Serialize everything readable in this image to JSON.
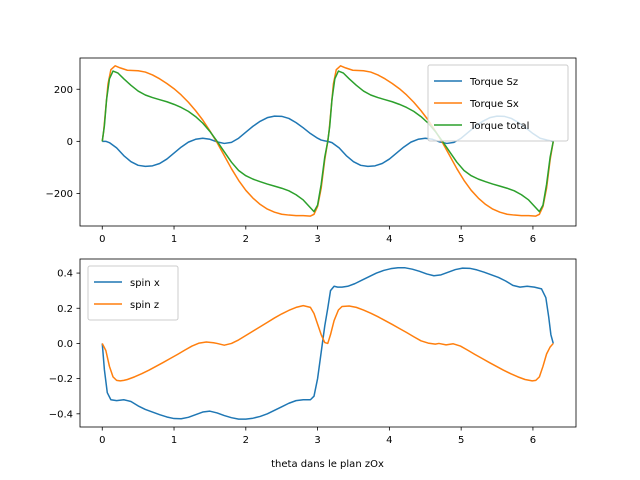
{
  "chart_data": [
    {
      "type": "line",
      "title": "",
      "xlabel": "",
      "ylabel": "",
      "xlim": [
        -0.31,
        6.6
      ],
      "ylim": [
        -325,
        320
      ],
      "xticks": [
        0,
        1,
        2,
        3,
        4,
        5,
        6
      ],
      "yticks": [
        -200,
        0,
        200
      ],
      "xtick_labels": [
        "0",
        "1",
        "2",
        "3",
        "4",
        "5",
        "6"
      ],
      "ytick_labels": [
        "−200",
        "0",
        "200"
      ],
      "legend": "upper right",
      "series": [
        {
          "name": "Torque Sz",
          "color": "#1f77b4",
          "x": [
            0,
            0.05,
            0.1,
            0.2,
            0.3,
            0.4,
            0.5,
            0.6,
            0.7,
            0.8,
            0.9,
            1.0,
            1.1,
            1.2,
            1.3,
            1.4,
            1.5,
            1.6,
            1.7,
            1.8,
            1.9,
            2.0,
            2.1,
            2.2,
            2.3,
            2.4,
            2.5,
            2.6,
            2.7,
            2.8,
            2.9,
            3.0,
            3.05,
            3.1,
            3.1416,
            3.2,
            3.3,
            3.4,
            3.5,
            3.6,
            3.7,
            3.8,
            3.9,
            4.0,
            4.1,
            4.2,
            4.3,
            4.4,
            4.5,
            4.6,
            4.7,
            4.8,
            4.9,
            5.0,
            5.1,
            5.2,
            5.3,
            5.4,
            5.5,
            5.6,
            5.7,
            5.8,
            5.9,
            6.0,
            6.1,
            6.2,
            6.2832
          ],
          "y": [
            0,
            0,
            -5,
            -25,
            -55,
            -78,
            -92,
            -96,
            -94,
            -85,
            -68,
            -45,
            -22,
            -3,
            8,
            12,
            8,
            -2,
            -8,
            -4,
            12,
            35,
            58,
            77,
            91,
            97,
            96,
            88,
            72,
            52,
            30,
            12,
            5,
            2,
            0,
            -5,
            -25,
            -55,
            -78,
            -92,
            -96,
            -94,
            -85,
            -68,
            -45,
            -22,
            -3,
            8,
            12,
            8,
            -2,
            -8,
            -4,
            12,
            35,
            58,
            77,
            91,
            97,
            96,
            88,
            72,
            52,
            30,
            12,
            5,
            0
          ]
        },
        {
          "name": "Torque Sx",
          "color": "#ff7f0e",
          "x": [
            0,
            0.02,
            0.05,
            0.08,
            0.12,
            0.18,
            0.25,
            0.35,
            0.5,
            0.6,
            0.7,
            0.8,
            0.9,
            1.0,
            1.1,
            1.2,
            1.3,
            1.4,
            1.5,
            1.6,
            1.7,
            1.8,
            1.9,
            2.0,
            2.1,
            2.2,
            2.3,
            2.4,
            2.5,
            2.6,
            2.7,
            2.8,
            2.9,
            2.95,
            3.0,
            3.05,
            3.1,
            3.1416,
            3.16,
            3.19,
            3.22,
            3.26,
            3.32,
            3.39,
            3.49,
            3.64,
            3.74,
            3.84,
            3.94,
            4.04,
            4.14,
            4.24,
            4.34,
            4.44,
            4.54,
            4.64,
            4.74,
            4.84,
            4.94,
            5.04,
            5.14,
            5.24,
            5.34,
            5.44,
            5.54,
            5.64,
            5.74,
            5.84,
            5.94,
            6.04,
            6.09,
            6.14,
            6.19,
            6.24,
            6.2832
          ],
          "y": [
            0,
            40,
            130,
            220,
            275,
            290,
            282,
            273,
            271,
            266,
            255,
            240,
            222,
            202,
            178,
            150,
            118,
            82,
            40,
            -5,
            -55,
            -105,
            -150,
            -188,
            -218,
            -242,
            -260,
            -272,
            -280,
            -283,
            -285,
            -285,
            -287,
            -280,
            -250,
            -180,
            -70,
            0,
            40,
            130,
            220,
            275,
            290,
            282,
            273,
            271,
            266,
            255,
            240,
            222,
            202,
            178,
            150,
            118,
            82,
            40,
            -5,
            -55,
            -105,
            -150,
            -188,
            -218,
            -242,
            -260,
            -272,
            -280,
            -283,
            -285,
            -285,
            -287,
            -280,
            -250,
            -180,
            -70,
            0
          ]
        },
        {
          "name": "Torque total",
          "color": "#2ca02c",
          "x": [
            0,
            0.03,
            0.06,
            0.1,
            0.15,
            0.22,
            0.3,
            0.4,
            0.5,
            0.6,
            0.7,
            0.8,
            0.9,
            1.0,
            1.1,
            1.2,
            1.3,
            1.4,
            1.5,
            1.6,
            1.7,
            1.8,
            1.9,
            2.0,
            2.1,
            2.2,
            2.3,
            2.4,
            2.5,
            2.6,
            2.7,
            2.8,
            2.9,
            2.95,
            3.0,
            3.05,
            3.1,
            3.1416,
            3.17,
            3.2,
            3.24,
            3.29,
            3.36,
            3.44,
            3.54,
            3.64,
            3.74,
            3.84,
            3.94,
            4.04,
            4.14,
            4.24,
            4.34,
            4.44,
            4.54,
            4.64,
            4.74,
            4.84,
            4.94,
            5.04,
            5.14,
            5.24,
            5.34,
            5.44,
            5.54,
            5.64,
            5.74,
            5.84,
            5.94,
            6.04,
            6.09,
            6.14,
            6.19,
            6.24,
            6.2832
          ],
          "y": [
            0,
            60,
            160,
            240,
            270,
            262,
            240,
            215,
            193,
            178,
            168,
            160,
            152,
            142,
            130,
            115,
            95,
            70,
            38,
            0,
            -40,
            -80,
            -112,
            -132,
            -145,
            -155,
            -164,
            -172,
            -180,
            -190,
            -205,
            -225,
            -255,
            -270,
            -245,
            -165,
            -60,
            0,
            60,
            160,
            240,
            270,
            262,
            240,
            215,
            193,
            178,
            168,
            160,
            152,
            142,
            130,
            115,
            95,
            70,
            38,
            0,
            -40,
            -80,
            -112,
            -132,
            -145,
            -155,
            -164,
            -172,
            -180,
            -190,
            -205,
            -225,
            -255,
            -270,
            -245,
            -165,
            -60,
            0
          ]
        }
      ]
    },
    {
      "type": "line",
      "title": "",
      "xlabel": "theta dans le plan zOx",
      "ylabel": "",
      "xlim": [
        -0.31,
        6.6
      ],
      "ylim": [
        -0.475,
        0.48
      ],
      "xticks": [
        0,
        1,
        2,
        3,
        4,
        5,
        6
      ],
      "yticks": [
        -0.4,
        -0.2,
        0.0,
        0.2,
        0.4
      ],
      "xtick_labels": [
        "0",
        "1",
        "2",
        "3",
        "4",
        "5",
        "6"
      ],
      "ytick_labels": [
        "−0.4",
        "−0.2",
        "0.0",
        "0.2",
        "0.4"
      ],
      "legend": "upper left",
      "series": [
        {
          "name": "spin x",
          "color": "#1f77b4",
          "x": [
            0,
            0.03,
            0.07,
            0.12,
            0.2,
            0.3,
            0.4,
            0.5,
            0.6,
            0.7,
            0.8,
            0.9,
            1.0,
            1.1,
            1.2,
            1.3,
            1.4,
            1.5,
            1.6,
            1.7,
            1.8,
            1.9,
            2.0,
            2.1,
            2.2,
            2.3,
            2.4,
            2.5,
            2.6,
            2.7,
            2.8,
            2.9,
            2.95,
            3.0,
            3.05,
            3.1,
            3.1416,
            3.18,
            3.23,
            3.28,
            3.34,
            3.42,
            3.52,
            3.62,
            3.72,
            3.82,
            3.92,
            4.02,
            4.12,
            4.22,
            4.32,
            4.42,
            4.52,
            4.62,
            4.72,
            4.82,
            4.92,
            5.02,
            5.12,
            5.22,
            5.32,
            5.42,
            5.52,
            5.62,
            5.72,
            5.82,
            5.92,
            6.02,
            6.12,
            6.18,
            6.22,
            6.25,
            6.2832
          ],
          "y": [
            0,
            -0.15,
            -0.28,
            -0.32,
            -0.325,
            -0.32,
            -0.33,
            -0.355,
            -0.375,
            -0.39,
            -0.405,
            -0.418,
            -0.427,
            -0.428,
            -0.42,
            -0.405,
            -0.39,
            -0.385,
            -0.395,
            -0.41,
            -0.422,
            -0.43,
            -0.43,
            -0.425,
            -0.415,
            -0.4,
            -0.38,
            -0.36,
            -0.34,
            -0.325,
            -0.32,
            -0.32,
            -0.3,
            -0.2,
            -0.05,
            0.1,
            0.2,
            0.3,
            0.325,
            0.32,
            0.32,
            0.325,
            0.34,
            0.36,
            0.38,
            0.4,
            0.415,
            0.425,
            0.43,
            0.43,
            0.422,
            0.41,
            0.395,
            0.385,
            0.39,
            0.405,
            0.42,
            0.428,
            0.427,
            0.418,
            0.405,
            0.39,
            0.375,
            0.355,
            0.33,
            0.32,
            0.325,
            0.32,
            0.31,
            0.26,
            0.15,
            0.05,
            0
          ]
        },
        {
          "name": "spin z",
          "color": "#ff7f0e",
          "x": [
            0,
            0.05,
            0.1,
            0.15,
            0.2,
            0.25,
            0.3,
            0.35,
            0.45,
            0.55,
            0.65,
            0.75,
            0.85,
            0.95,
            1.05,
            1.15,
            1.25,
            1.35,
            1.45,
            1.55,
            1.6,
            1.7,
            1.8,
            1.9,
            2.0,
            2.1,
            2.2,
            2.3,
            2.4,
            2.5,
            2.6,
            2.7,
            2.8,
            2.9,
            2.95,
            3.0,
            3.05,
            3.1,
            3.1416,
            3.18,
            3.23,
            3.29,
            3.34,
            3.44,
            3.54,
            3.64,
            3.74,
            3.84,
            3.94,
            4.04,
            4.14,
            4.24,
            4.34,
            4.44,
            4.54,
            4.64,
            4.69,
            4.79,
            4.89,
            4.99,
            5.09,
            5.19,
            5.29,
            5.39,
            5.49,
            5.59,
            5.69,
            5.79,
            5.89,
            5.99,
            6.04,
            6.09,
            6.14,
            6.19,
            6.24,
            6.2832
          ],
          "y": [
            0,
            -0.04,
            -0.13,
            -0.19,
            -0.21,
            -0.213,
            -0.21,
            -0.205,
            -0.19,
            -0.172,
            -0.152,
            -0.13,
            -0.108,
            -0.085,
            -0.062,
            -0.038,
            -0.015,
            0.002,
            0.008,
            0.004,
            0.0,
            -0.01,
            0.0,
            0.02,
            0.045,
            0.07,
            0.095,
            0.12,
            0.145,
            0.168,
            0.188,
            0.205,
            0.215,
            0.205,
            0.17,
            0.11,
            0.05,
            0.005,
            0.0,
            0.05,
            0.13,
            0.19,
            0.21,
            0.213,
            0.205,
            0.19,
            0.172,
            0.152,
            0.13,
            0.108,
            0.085,
            0.062,
            0.038,
            0.015,
            0.002,
            -0.004,
            0.0,
            -0.008,
            -0.002,
            -0.015,
            -0.038,
            -0.062,
            -0.085,
            -0.108,
            -0.13,
            -0.152,
            -0.172,
            -0.19,
            -0.205,
            -0.213,
            -0.21,
            -0.19,
            -0.13,
            -0.06,
            -0.02,
            0
          ]
        }
      ]
    }
  ]
}
